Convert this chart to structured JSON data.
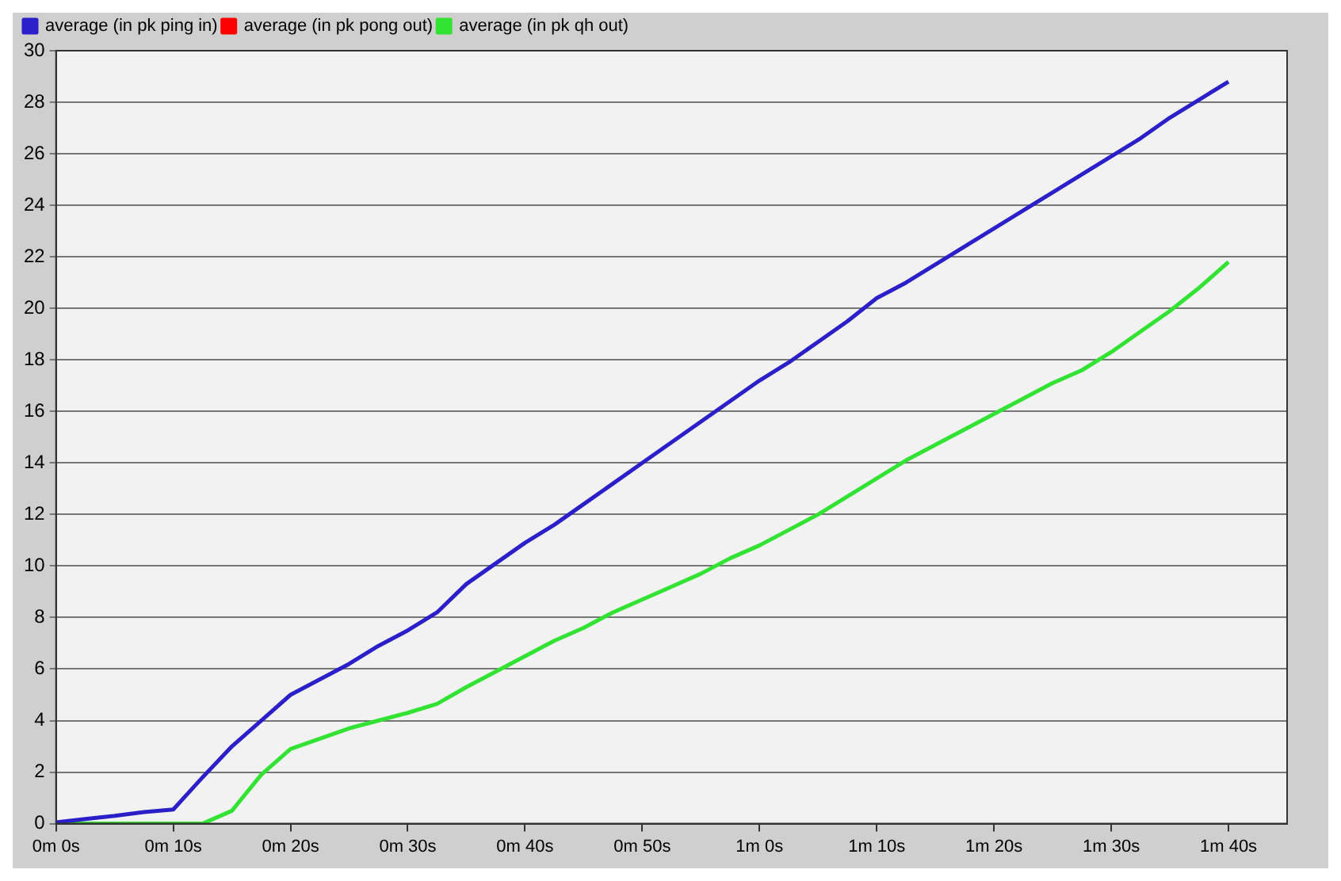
{
  "chart_data": {
    "type": "line",
    "ylim": [
      0,
      30
    ],
    "categories": [
      "0m 0s",
      null,
      null,
      null,
      "0m 10s",
      null,
      null,
      null,
      "0m 20s",
      null,
      null,
      null,
      "0m 30s",
      null,
      null,
      null,
      "0m 40s",
      null,
      null,
      null,
      "0m 50s",
      null,
      null,
      null,
      "1m 0s",
      null,
      null,
      null,
      "1m 10s",
      null,
      null,
      null,
      "1m 20s",
      null,
      null,
      null,
      "1m 30s",
      null,
      null,
      null,
      "1m 40s",
      null,
      null
    ],
    "yticks": [
      0,
      2,
      4,
      6,
      8,
      10,
      12,
      14,
      16,
      18,
      20,
      22,
      24,
      26,
      28,
      30
    ],
    "grid": "y",
    "legend": "top left",
    "marker": "none",
    "line_style": "solid",
    "series": [
      {
        "name": "average (in pk ping in)",
        "color": "#2a1fc8",
        "values": [
          0.05,
          0.18,
          0.3,
          0.45,
          0.55,
          1.8,
          3.0,
          4.0,
          5.0,
          5.6,
          6.2,
          6.9,
          7.5,
          8.2,
          9.3,
          10.1,
          10.9,
          11.6,
          12.4,
          13.2,
          14.0,
          14.8,
          15.6,
          16.4,
          17.2,
          17.9,
          18.7,
          19.5,
          20.4,
          21.0,
          21.7,
          22.4,
          23.1,
          23.8,
          24.5,
          25.2,
          25.9,
          26.6,
          27.4,
          28.1,
          28.8,
          null,
          null
        ]
      },
      {
        "name": "average (in pk pong out)",
        "color": "#ff0000",
        "values": [
          null,
          null,
          null,
          null,
          null,
          null,
          null,
          null,
          null,
          null,
          null,
          null,
          null,
          null,
          null,
          null,
          null,
          null,
          null,
          null,
          null,
          null,
          null,
          null,
          null,
          null,
          null,
          null,
          null,
          null,
          null,
          null,
          null,
          null,
          null,
          null,
          null,
          null,
          null,
          null,
          null,
          null,
          null
        ]
      },
      {
        "name": "average (in pk qh out)",
        "color": "#33e333",
        "values": [
          0,
          0,
          0,
          0,
          0,
          0,
          0.5,
          1.9,
          2.9,
          3.3,
          3.7,
          4.0,
          4.3,
          4.65,
          5.3,
          5.9,
          6.5,
          7.1,
          7.6,
          8.2,
          8.7,
          9.2,
          9.7,
          10.3,
          10.8,
          11.4,
          12.0,
          12.7,
          13.4,
          14.1,
          14.7,
          15.3,
          15.9,
          16.5,
          17.1,
          17.6,
          18.3,
          19.1,
          19.9,
          20.8,
          21.8,
          null,
          null
        ]
      }
    ]
  }
}
